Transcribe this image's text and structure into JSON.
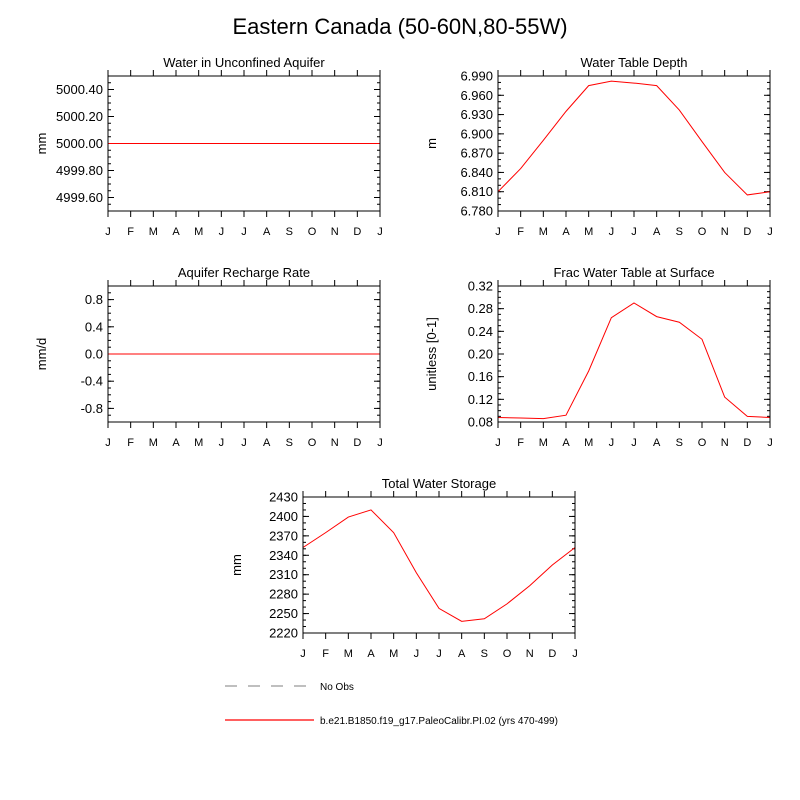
{
  "page_title": "Eastern Canada (50-60N,80-55W)",
  "legend": {
    "items": [
      {
        "label": "No Obs",
        "style": "dashed",
        "color": "#999999"
      },
      {
        "label": "b.e21.B1850.f19_g17.PaleoCalibr.PI.02 (yrs 470-499)",
        "style": "solid",
        "color": "#ff0000"
      }
    ]
  },
  "chart_data": [
    {
      "type": "line",
      "title": "Water in Unconfined Aquifer",
      "ylabel": "mm",
      "xlabel": "",
      "x": [
        "J",
        "F",
        "M",
        "A",
        "M",
        "J",
        "J",
        "A",
        "S",
        "O",
        "N",
        "D",
        "J"
      ],
      "ylim": [
        4999.5,
        5000.5
      ],
      "yticks": [
        4999.6,
        4999.8,
        5000.0,
        5000.2,
        5000.4
      ],
      "ytick_labels": [
        "4999.60",
        "4999.80",
        "5000.00",
        "5000.20",
        "5000.40"
      ],
      "yminor_step": 0.05,
      "series": [
        {
          "color": "#ff0000",
          "values": [
            5000,
            5000,
            5000,
            5000,
            5000,
            5000,
            5000,
            5000,
            5000,
            5000,
            5000,
            5000,
            5000
          ]
        }
      ]
    },
    {
      "type": "line",
      "title": "Water Table Depth",
      "ylabel": "m",
      "xlabel": "",
      "x": [
        "J",
        "F",
        "M",
        "A",
        "M",
        "J",
        "J",
        "A",
        "S",
        "O",
        "N",
        "D",
        "J"
      ],
      "ylim": [
        6.78,
        6.99
      ],
      "yticks": [
        6.78,
        6.81,
        6.84,
        6.87,
        6.9,
        6.93,
        6.96,
        6.99
      ],
      "ytick_labels": [
        "6.780",
        "6.810",
        "6.840",
        "6.870",
        "6.900",
        "6.930",
        "6.960",
        "6.990"
      ],
      "yminor_step": 0.01,
      "series": [
        {
          "color": "#ff0000",
          "values": [
            6.81,
            6.846,
            6.89,
            6.935,
            6.975,
            6.982,
            6.979,
            6.975,
            6.937,
            6.888,
            6.84,
            6.805,
            6.81
          ]
        }
      ]
    },
    {
      "type": "line",
      "title": "Aquifer Recharge Rate",
      "ylabel": "mm/d",
      "xlabel": "",
      "x": [
        "J",
        "F",
        "M",
        "A",
        "M",
        "J",
        "J",
        "A",
        "S",
        "O",
        "N",
        "D",
        "J"
      ],
      "ylim": [
        -1.0,
        1.0
      ],
      "yticks": [
        -0.8,
        -0.4,
        0.0,
        0.4,
        0.8
      ],
      "ytick_labels": [
        "-0.8",
        "-0.4",
        "0.0",
        "0.4",
        "0.8"
      ],
      "yminor_step": 0.1,
      "series": [
        {
          "color": "#ff0000",
          "values": [
            0,
            0,
            0,
            0,
            0,
            0,
            0,
            0,
            0,
            0,
            0,
            0,
            0
          ]
        }
      ]
    },
    {
      "type": "line",
      "title": "Frac Water Table at Surface",
      "ylabel": "unitless [0-1]",
      "xlabel": "",
      "x": [
        "J",
        "F",
        "M",
        "A",
        "M",
        "J",
        "J",
        "A",
        "S",
        "O",
        "N",
        "D",
        "J"
      ],
      "ylim": [
        0.08,
        0.32
      ],
      "yticks": [
        0.08,
        0.12,
        0.16,
        0.2,
        0.24,
        0.28,
        0.32
      ],
      "ytick_labels": [
        "0.08",
        "0.12",
        "0.16",
        "0.20",
        "0.24",
        "0.28",
        "0.32"
      ],
      "yminor_step": 0.01,
      "series": [
        {
          "color": "#ff0000",
          "values": [
            0.088,
            0.087,
            0.086,
            0.092,
            0.17,
            0.264,
            0.29,
            0.266,
            0.256,
            0.226,
            0.124,
            0.09,
            0.088
          ]
        }
      ]
    },
    {
      "type": "line",
      "title": "Total Water Storage",
      "ylabel": "mm",
      "xlabel": "",
      "x": [
        "J",
        "F",
        "M",
        "A",
        "M",
        "J",
        "J",
        "A",
        "S",
        "O",
        "N",
        "D",
        "J"
      ],
      "ylim": [
        2220,
        2430
      ],
      "yticks": [
        2220,
        2250,
        2280,
        2310,
        2340,
        2370,
        2400,
        2430
      ],
      "ytick_labels": [
        "2220",
        "2250",
        "2280",
        "2310",
        "2340",
        "2370",
        "2400",
        "2430"
      ],
      "yminor_step": 10,
      "series": [
        {
          "color": "#ff0000",
          "values": [
            2352,
            2375,
            2399,
            2410,
            2375,
            2313,
            2258,
            2238,
            2242,
            2265,
            2293,
            2325,
            2352
          ]
        }
      ]
    }
  ]
}
